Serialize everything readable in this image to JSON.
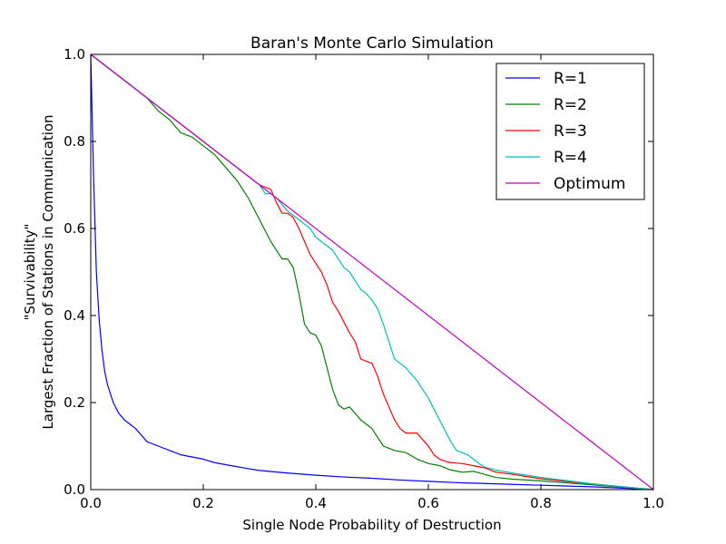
{
  "chart_data": {
    "type": "line",
    "title": "Baran's Monte Carlo Simulation",
    "xlabel": "Single Node Probability of Destruction",
    "ylabel_line1": "\"Survivability\"",
    "ylabel_line2": "Largest Fraction of Stations in Communication",
    "xlim": [
      0.0,
      1.0
    ],
    "ylim": [
      0.0,
      1.0
    ],
    "xticks": [
      "0.0",
      "0.2",
      "0.4",
      "0.6",
      "0.8",
      "1.0"
    ],
    "yticks": [
      "0.0",
      "0.2",
      "0.4",
      "0.6",
      "0.8",
      "1.0"
    ],
    "grid": false,
    "legend_position": "top-right",
    "series": [
      {
        "name": "R=1",
        "color": "#0000ff",
        "x": [
          0.0,
          0.005,
          0.01,
          0.015,
          0.02,
          0.025,
          0.03,
          0.04,
          0.05,
          0.06,
          0.07,
          0.08,
          0.09,
          0.1,
          0.12,
          0.14,
          0.16,
          0.18,
          0.2,
          0.22,
          0.25,
          0.28,
          0.3,
          0.35,
          0.4,
          0.45,
          0.5,
          0.55,
          0.6,
          0.65,
          0.7,
          0.75,
          0.8,
          0.85,
          0.9,
          0.95,
          1.0
        ],
        "values": [
          1.0,
          0.72,
          0.5,
          0.39,
          0.32,
          0.27,
          0.24,
          0.2,
          0.175,
          0.16,
          0.15,
          0.14,
          0.125,
          0.11,
          0.1,
          0.09,
          0.08,
          0.075,
          0.07,
          0.062,
          0.055,
          0.048,
          0.044,
          0.038,
          0.033,
          0.029,
          0.026,
          0.022,
          0.019,
          0.016,
          0.014,
          0.012,
          0.01,
          0.008,
          0.006,
          0.003,
          0.0
        ]
      },
      {
        "name": "R=2",
        "color": "#008000",
        "x": [
          0.0,
          0.05,
          0.1,
          0.12,
          0.14,
          0.16,
          0.18,
          0.2,
          0.22,
          0.24,
          0.26,
          0.28,
          0.3,
          0.32,
          0.34,
          0.35,
          0.36,
          0.37,
          0.38,
          0.39,
          0.4,
          0.41,
          0.42,
          0.43,
          0.44,
          0.45,
          0.46,
          0.47,
          0.48,
          0.49,
          0.5,
          0.51,
          0.52,
          0.53,
          0.54,
          0.56,
          0.58,
          0.6,
          0.62,
          0.64,
          0.66,
          0.68,
          0.7,
          0.72,
          0.75,
          0.8,
          0.85,
          0.9,
          0.95,
          1.0
        ],
        "values": [
          1.0,
          0.95,
          0.9,
          0.87,
          0.85,
          0.82,
          0.81,
          0.79,
          0.77,
          0.74,
          0.71,
          0.67,
          0.62,
          0.57,
          0.53,
          0.53,
          0.51,
          0.45,
          0.38,
          0.36,
          0.355,
          0.33,
          0.28,
          0.23,
          0.195,
          0.185,
          0.19,
          0.175,
          0.16,
          0.15,
          0.14,
          0.12,
          0.1,
          0.095,
          0.09,
          0.085,
          0.07,
          0.06,
          0.055,
          0.045,
          0.04,
          0.042,
          0.035,
          0.028,
          0.024,
          0.02,
          0.015,
          0.01,
          0.005,
          0.0
        ]
      },
      {
        "name": "R=3",
        "color": "#ff0000",
        "x": [
          0.0,
          0.05,
          0.1,
          0.15,
          0.2,
          0.25,
          0.3,
          0.32,
          0.33,
          0.34,
          0.35,
          0.36,
          0.37,
          0.38,
          0.39,
          0.4,
          0.41,
          0.42,
          0.43,
          0.44,
          0.45,
          0.46,
          0.47,
          0.48,
          0.49,
          0.5,
          0.51,
          0.52,
          0.53,
          0.54,
          0.55,
          0.56,
          0.57,
          0.58,
          0.59,
          0.6,
          0.61,
          0.62,
          0.63,
          0.64,
          0.66,
          0.68,
          0.7,
          0.72,
          0.75,
          0.8,
          0.85,
          0.9,
          0.95,
          1.0
        ],
        "values": [
          1.0,
          0.95,
          0.9,
          0.85,
          0.8,
          0.75,
          0.7,
          0.69,
          0.66,
          0.635,
          0.635,
          0.625,
          0.6,
          0.57,
          0.54,
          0.52,
          0.5,
          0.47,
          0.43,
          0.41,
          0.385,
          0.36,
          0.34,
          0.3,
          0.295,
          0.29,
          0.26,
          0.22,
          0.19,
          0.16,
          0.14,
          0.13,
          0.13,
          0.13,
          0.115,
          0.1,
          0.08,
          0.07,
          0.065,
          0.062,
          0.06,
          0.055,
          0.05,
          0.04,
          0.035,
          0.025,
          0.018,
          0.012,
          0.006,
          0.0
        ]
      },
      {
        "name": "R=4",
        "color": "#00bfbf",
        "x": [
          0.0,
          0.05,
          0.1,
          0.15,
          0.2,
          0.25,
          0.3,
          0.31,
          0.32,
          0.33,
          0.35,
          0.37,
          0.39,
          0.4,
          0.42,
          0.43,
          0.44,
          0.45,
          0.46,
          0.47,
          0.48,
          0.49,
          0.5,
          0.51,
          0.52,
          0.53,
          0.54,
          0.55,
          0.56,
          0.57,
          0.58,
          0.59,
          0.6,
          0.61,
          0.62,
          0.63,
          0.64,
          0.65,
          0.66,
          0.67,
          0.68,
          0.69,
          0.7,
          0.72,
          0.75,
          0.8,
          0.85,
          0.9,
          0.95,
          1.0
        ],
        "values": [
          1.0,
          0.95,
          0.9,
          0.85,
          0.8,
          0.75,
          0.7,
          0.68,
          0.68,
          0.67,
          0.64,
          0.62,
          0.6,
          0.58,
          0.56,
          0.55,
          0.53,
          0.51,
          0.5,
          0.48,
          0.46,
          0.45,
          0.435,
          0.415,
          0.38,
          0.34,
          0.3,
          0.29,
          0.28,
          0.265,
          0.25,
          0.23,
          0.21,
          0.185,
          0.16,
          0.135,
          0.11,
          0.09,
          0.085,
          0.08,
          0.07,
          0.06,
          0.052,
          0.045,
          0.038,
          0.028,
          0.02,
          0.012,
          0.006,
          0.0
        ]
      },
      {
        "name": "Optimum",
        "color": "#bf00bf",
        "x": [
          0.0,
          1.0
        ],
        "values": [
          1.0,
          0.0
        ]
      }
    ]
  }
}
